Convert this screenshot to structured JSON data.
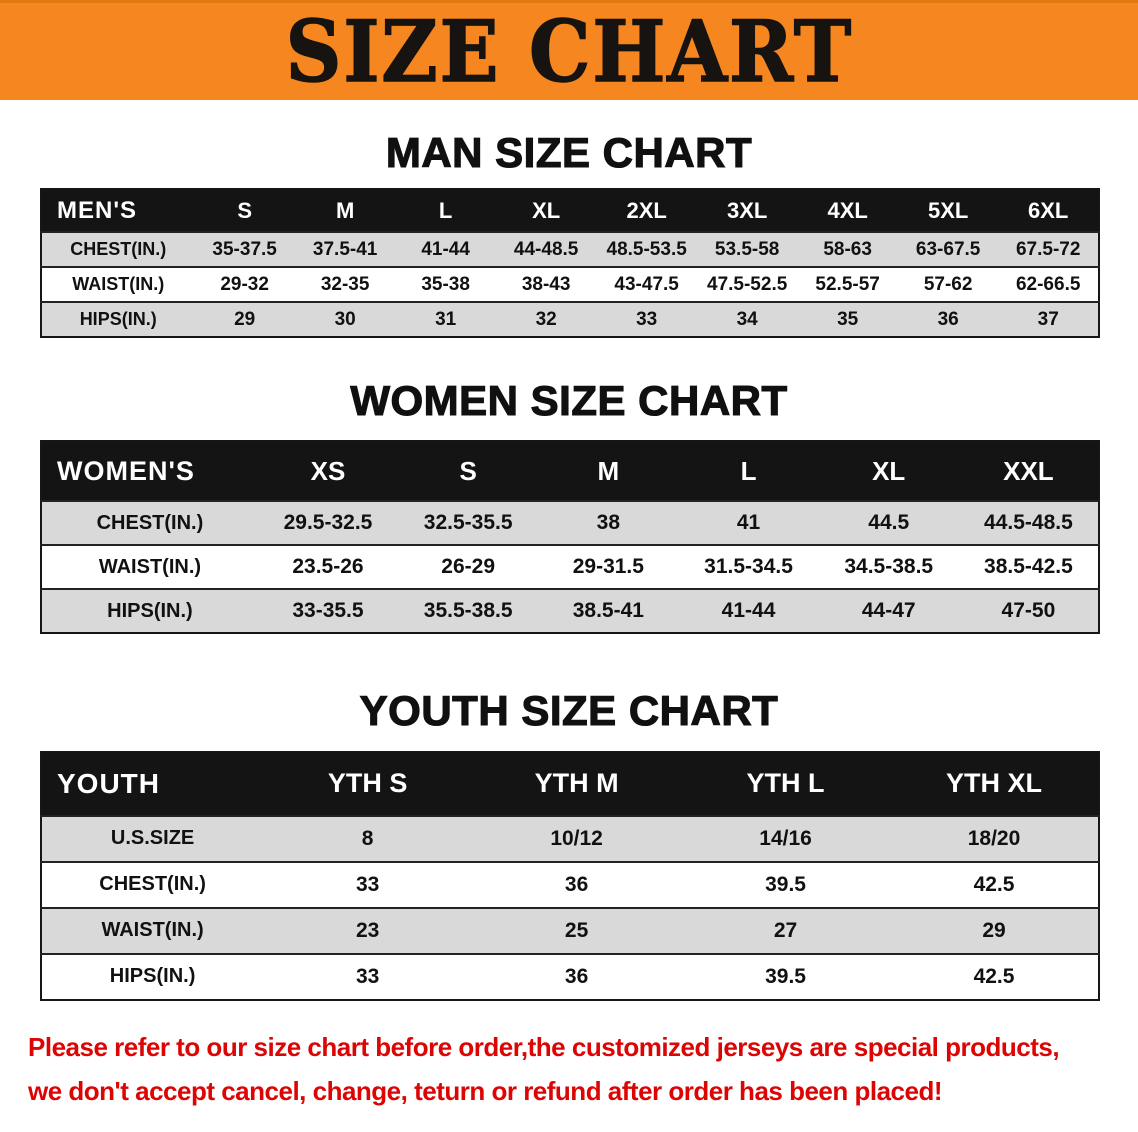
{
  "banner": {
    "title": "SIZE CHART",
    "bg_color": "#f6861f",
    "text_color": "#171310"
  },
  "men": {
    "heading": "MAN SIZE CHART",
    "table": {
      "header": [
        "MEN'S",
        "S",
        "M",
        "L",
        "XL",
        "2XL",
        "3XL",
        "4XL",
        "5XL",
        "6XL"
      ],
      "rows": [
        [
          "CHEST(IN.)",
          "35-37.5",
          "37.5-41",
          "41-44",
          "44-48.5",
          "48.5-53.5",
          "53.5-58",
          "58-63",
          "63-67.5",
          "67.5-72"
        ],
        [
          "WAIST(IN.)",
          "29-32",
          "32-35",
          "35-38",
          "38-43",
          "43-47.5",
          "47.5-52.5",
          "52.5-57",
          "57-62",
          "62-66.5"
        ],
        [
          "HIPS(IN.)",
          "29",
          "30",
          "31",
          "32",
          "33",
          "34",
          "35",
          "36",
          "37"
        ]
      ]
    }
  },
  "women": {
    "heading": "WOMEN SIZE CHART",
    "table": {
      "header": [
        "WOMEN'S",
        "XS",
        "S",
        "M",
        "L",
        "XL",
        "XXL"
      ],
      "rows": [
        [
          "CHEST(IN.)",
          "29.5-32.5",
          "32.5-35.5",
          "38",
          "41",
          "44.5",
          "44.5-48.5"
        ],
        [
          "WAIST(IN.)",
          "23.5-26",
          "26-29",
          "29-31.5",
          "31.5-34.5",
          "34.5-38.5",
          "38.5-42.5"
        ],
        [
          "HIPS(IN.)",
          "33-35.5",
          "35.5-38.5",
          "38.5-41",
          "41-44",
          "44-47",
          "47-50"
        ]
      ]
    }
  },
  "youth": {
    "heading": "YOUTH SIZE CHART",
    "table": {
      "header": [
        "YOUTH",
        "YTH S",
        "YTH M",
        "YTH L",
        "YTH XL"
      ],
      "rows": [
        [
          "U.S.SIZE",
          "8",
          "10/12",
          "14/16",
          "18/20"
        ],
        [
          "CHEST(IN.)",
          "33",
          "36",
          "39.5",
          "42.5"
        ],
        [
          "WAIST(IN.)",
          "23",
          "25",
          "27",
          "29"
        ],
        [
          "HIPS(IN.)",
          "33",
          "36",
          "39.5",
          "42.5"
        ]
      ]
    }
  },
  "notice": {
    "color": "#dd0404",
    "lines": [
      "Please refer to our size chart before order,the customized jerseys are special products,",
      "we don't accept cancel, change, teturn or refund after order has been placed!"
    ]
  }
}
